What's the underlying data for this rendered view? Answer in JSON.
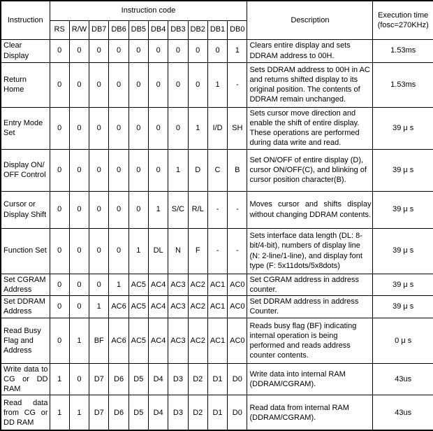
{
  "table": {
    "header": {
      "instruction": "Instruction",
      "instruction_code": "Instruction code",
      "code_columns": [
        "RS",
        "R/W",
        "DB7",
        "DB6",
        "DB5",
        "DB4",
        "DB3",
        "DB2",
        "DB1",
        "DB0"
      ],
      "description": "Description",
      "execution_time": "Execution time (fosc=270KHz)"
    },
    "rows": [
      {
        "instruction": "Clear Display",
        "code": [
          "0",
          "0",
          "0",
          "0",
          "0",
          "0",
          "0",
          "0",
          "0",
          "1"
        ],
        "description": "Clears entire display and sets DDRAM address to 00H.",
        "time": "1.53ms"
      },
      {
        "instruction": "Return Home",
        "code": [
          "0",
          "0",
          "0",
          "0",
          "0",
          "0",
          "0",
          "0",
          "1",
          "-"
        ],
        "description": "Sets DDRAM address to 00H in AC and returns shifted display to its original position. The contents of DDRAM remain unchanged.",
        "time": "1.53ms"
      },
      {
        "instruction": "Entry Mode Set",
        "code": [
          "0",
          "0",
          "0",
          "0",
          "0",
          "0",
          "0",
          "1",
          "I/D",
          "SH"
        ],
        "description": "Sets cursor move direction and enable the shift of entire display. These operations are performed during data write and read.",
        "time": "39 μ s"
      },
      {
        "instruction": "Display ON/ OFF Control",
        "code": [
          "0",
          "0",
          "0",
          "0",
          "0",
          "0",
          "1",
          "D",
          "C",
          "B"
        ],
        "description": "Set ON/OFF of entire display (D), cursor ON/OFF(C), and blinking of cursor position character(B).",
        "time": "39 μ s"
      },
      {
        "instruction": "Cursor or Display Shift",
        "code": [
          "0",
          "0",
          "0",
          "0",
          "0",
          "1",
          "S/C",
          "R/L",
          "-",
          "-"
        ],
        "description": "Moves cursor and shifts display without changing DDRAM contents.",
        "time": "39 μ s"
      },
      {
        "instruction": "Function Set",
        "code": [
          "0",
          "0",
          "0",
          "0",
          "1",
          "DL",
          "N",
          "F",
          "-",
          "-"
        ],
        "description": "Sets interface data length (DL: 8-bit/4-bit), numbers of display line (N: 2-line/1-line), and display font type (F: 5x11dots/5x8dots)",
        "time": "39 μ s"
      },
      {
        "instruction": "Set CGRAM Address",
        "code": [
          "0",
          "0",
          "0",
          "1",
          "AC5",
          "AC4",
          "AC3",
          "AC2",
          "AC1",
          "AC0"
        ],
        "description": "Set CGRAM address in address counter.",
        "time": "39 μ s"
      },
      {
        "instruction": "Set DDRAM Address",
        "code": [
          "0",
          "0",
          "1",
          "AC6",
          "AC5",
          "AC4",
          "AC3",
          "AC2",
          "AC1",
          "AC0"
        ],
        "description": "Set DDRAM address in address Counter.",
        "time": "39 μ s"
      },
      {
        "instruction": "Read Busy Flag and Address",
        "code": [
          "0",
          "1",
          "BF",
          "AC6",
          "AC5",
          "AC4",
          "AC3",
          "AC2",
          "AC1",
          "AC0"
        ],
        "description": "Reads busy flag (BF) indicating internal operation is being performed and reads address counter contents.",
        "time": "0 μ s"
      },
      {
        "instruction": "Write data to CG or DD RAM",
        "code": [
          "1",
          "0",
          "D7",
          "D6",
          "D5",
          "D4",
          "D3",
          "D2",
          "D1",
          "D0"
        ],
        "description": "Write data into internal RAM (DDRAM/CGRAM).",
        "time": "43us"
      },
      {
        "instruction": "Read data from CG or DD RAM",
        "code": [
          "1",
          "1",
          "D7",
          "D6",
          "D5",
          "D4",
          "D3",
          "D2",
          "D1",
          "D0"
        ],
        "description": "Read data from internal RAM (DDRAM/CGRAM).",
        "time": "43us"
      }
    ]
  }
}
